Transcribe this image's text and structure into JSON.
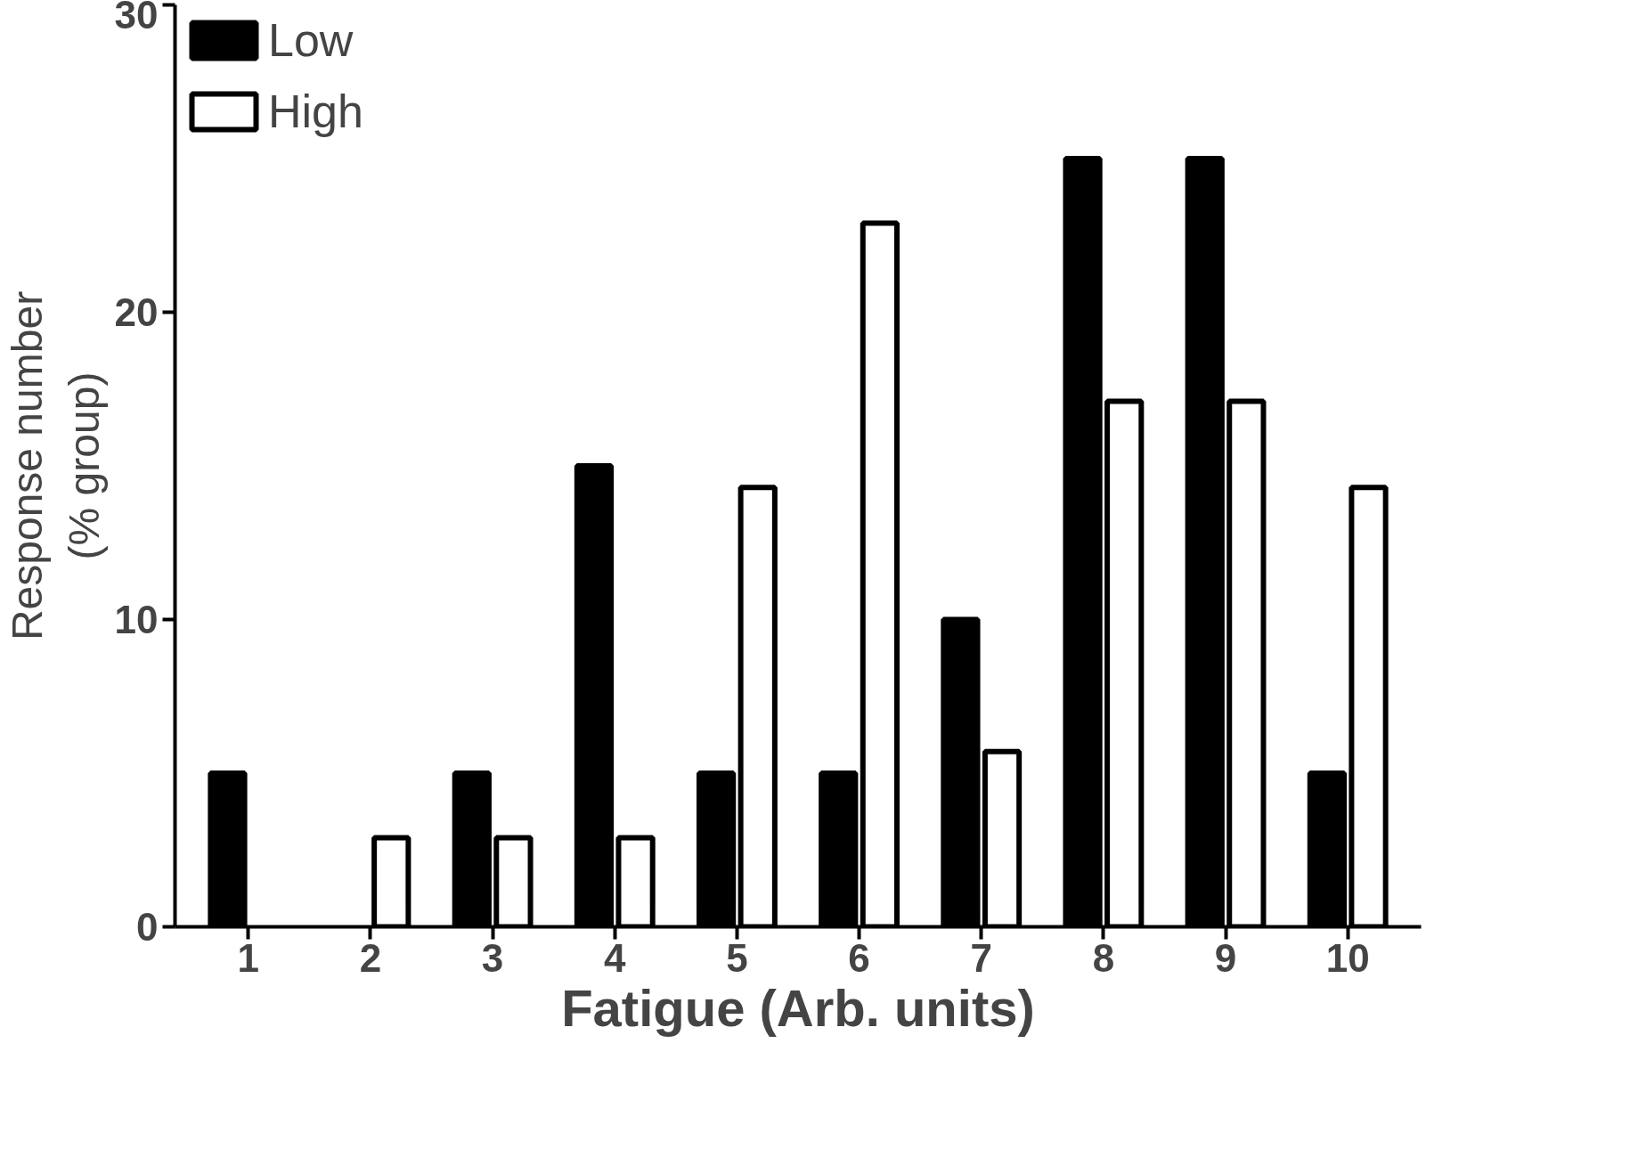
{
  "chart_data": {
    "type": "bar",
    "xlabel": "Fatigue (Arb. units)",
    "ylabel": "Response number\n(% group)",
    "categories": [
      "1",
      "2",
      "3",
      "4",
      "5",
      "6",
      "7",
      "8",
      "9",
      "10"
    ],
    "series": [
      {
        "name": "Low",
        "color": "#000000",
        "values": [
          5,
          null,
          5,
          15,
          5,
          5,
          10,
          25,
          25,
          5
        ]
      },
      {
        "name": "High",
        "color": "#ffffff",
        "values": [
          null,
          2.9,
          2.9,
          2.9,
          14.3,
          22.9,
          5.7,
          17.1,
          17.1,
          14.3
        ]
      }
    ],
    "ylim": [
      0,
      30
    ],
    "yticks": [
      0,
      10,
      20,
      30
    ],
    "grid": false,
    "legend": "top left"
  }
}
